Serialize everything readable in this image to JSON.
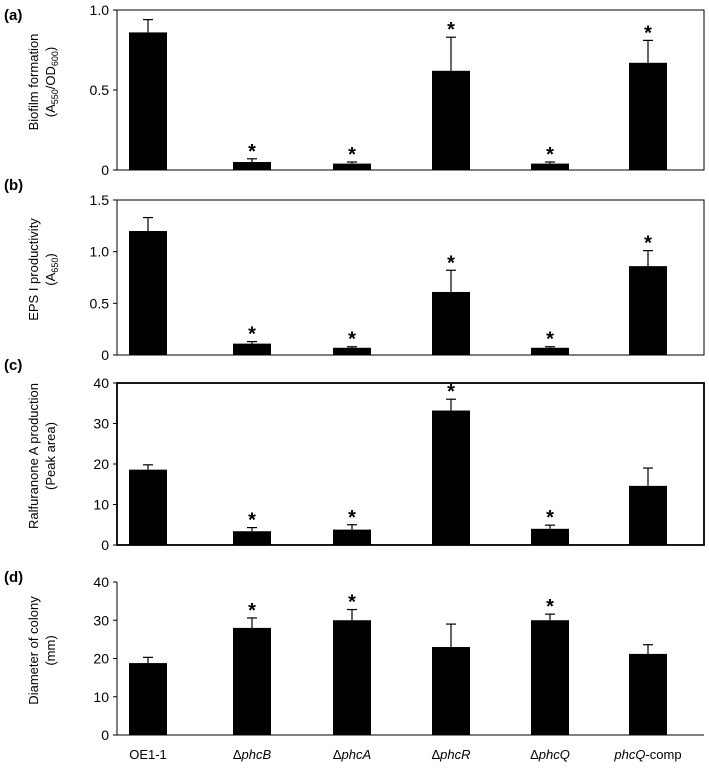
{
  "colors": {
    "bar": "#000000",
    "axis": "#000000",
    "background": "#ffffff"
  },
  "chart_data": [
    {
      "type": "bar",
      "panel": "(a)",
      "ylabel": "Biofilm formation",
      "ylabel_unit": "(A550/OD600)",
      "ylim": [
        0,
        1.0
      ],
      "yticks": [
        "0",
        "0.5",
        "1.0"
      ],
      "tick_values": [
        0,
        0.5,
        1.0
      ],
      "box": "full",
      "categories": [
        "OE1-1",
        "ΔphcB",
        "ΔphcA",
        "ΔphcR",
        "ΔphcQ",
        "phcQ-comp"
      ],
      "values": [
        0.86,
        0.05,
        0.04,
        0.62,
        0.04,
        0.67
      ],
      "errors": [
        0.08,
        0.02,
        0.01,
        0.21,
        0.01,
        0.14
      ],
      "significant": [
        false,
        true,
        true,
        true,
        true,
        true
      ],
      "marker": "*"
    },
    {
      "type": "bar",
      "panel": "(b)",
      "ylabel": "EPS I productivity",
      "ylabel_unit": "(A650)",
      "ylim": [
        0,
        1.5
      ],
      "yticks": [
        "0",
        "0.5",
        "1.0",
        "1.5"
      ],
      "tick_values": [
        0,
        0.5,
        1.0,
        1.5
      ],
      "box": "full",
      "categories": [
        "OE1-1",
        "ΔphcB",
        "ΔphcA",
        "ΔphcR",
        "ΔphcQ",
        "phcQ-comp"
      ],
      "values": [
        1.2,
        0.11,
        0.07,
        0.61,
        0.07,
        0.86
      ],
      "errors": [
        0.13,
        0.02,
        0.01,
        0.21,
        0.01,
        0.15
      ],
      "significant": [
        false,
        true,
        true,
        true,
        true,
        true
      ],
      "marker": "*"
    },
    {
      "type": "bar",
      "panel": "(c)",
      "ylabel": "Ralfuranone A production",
      "ylabel_unit": "(Peak area)",
      "ylim": [
        0,
        40
      ],
      "yticks": [
        "0",
        "10",
        "20",
        "30",
        "40"
      ],
      "tick_values": [
        0,
        10,
        20,
        30,
        40
      ],
      "box": "full",
      "categories": [
        "OE1-1",
        "ΔphcB",
        "ΔphcA",
        "ΔphcR",
        "ΔphcQ",
        "phcQ-comp"
      ],
      "values": [
        18.6,
        3.4,
        3.8,
        33.2,
        4.0,
        14.6
      ],
      "errors": [
        1.2,
        0.9,
        1.2,
        2.8,
        0.9,
        4.4
      ],
      "significant": [
        false,
        true,
        true,
        true,
        true,
        false
      ],
      "marker": "*"
    },
    {
      "type": "bar",
      "panel": "(d)",
      "ylabel": "Diameter of colony",
      "ylabel_unit": "(mm)",
      "ylim": [
        0,
        40
      ],
      "yticks": [
        "0",
        "10",
        "20",
        "30",
        "40"
      ],
      "tick_values": [
        0,
        10,
        20,
        30,
        40
      ],
      "box": "axes",
      "categories": [
        "OE1-1",
        "ΔphcB",
        "ΔphcA",
        "ΔphcR",
        "ΔphcQ",
        "phcQ-comp"
      ],
      "category_parts": [
        [
          "",
          "OE1-1"
        ],
        [
          "Δ",
          "phcB"
        ],
        [
          "Δ",
          "phcA"
        ],
        [
          "Δ",
          "phcR"
        ],
        [
          "Δ",
          "phcQ"
        ],
        [
          "phcQ",
          "-comp"
        ]
      ],
      "values": [
        18.8,
        28.0,
        30.0,
        23.0,
        30.0,
        21.2
      ],
      "errors": [
        1.5,
        2.6,
        2.8,
        6.0,
        1.6,
        2.4
      ],
      "significant": [
        false,
        true,
        true,
        false,
        true,
        false
      ],
      "marker": "*"
    }
  ]
}
